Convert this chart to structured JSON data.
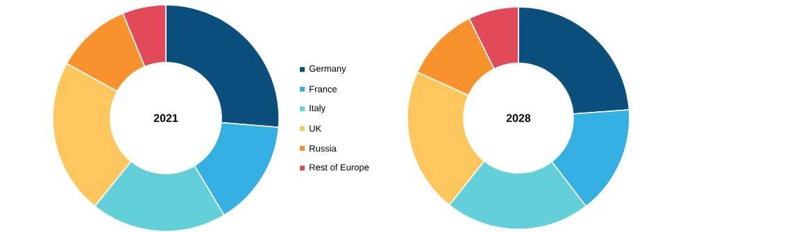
{
  "chart_data": [
    {
      "type": "donut",
      "title": "2021",
      "categories": [
        "Germany",
        "France",
        "Italy",
        "UK",
        "Russia",
        "Rest of Europe"
      ],
      "values": [
        26.3,
        15.1,
        19.4,
        22.2,
        10.8,
        6.2
      ],
      "colors": [
        "#0b4f7c",
        "#35b0e2",
        "#62cfd9",
        "#fec75e",
        "#f7922d",
        "#e24a5a"
      ],
      "legend": "right"
    },
    {
      "type": "donut",
      "title": "2028",
      "categories": [
        null,
        null,
        null,
        null,
        null,
        null
      ],
      "values": [
        23.8,
        15.8,
        21.1,
        21.1,
        10.9,
        7.3
      ],
      "colors": [
        "#0b4f7c",
        "#35b0e2",
        "#62cfd9",
        "#fec75e",
        "#f7922d",
        "#e24a5a"
      ]
    }
  ]
}
